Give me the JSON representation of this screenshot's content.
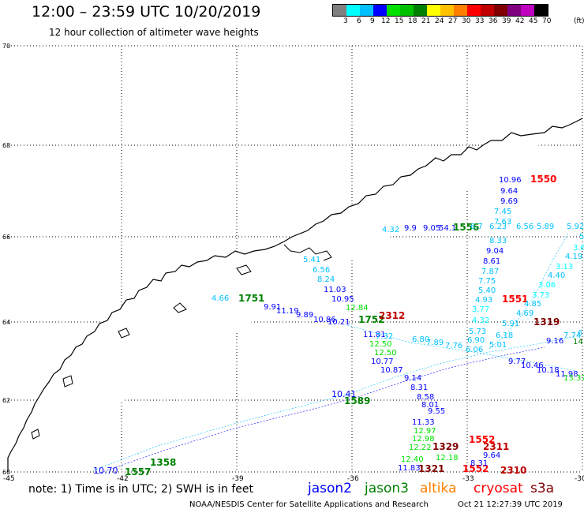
{
  "title": "12:00 – 23:59 UTC 10/20/2019",
  "subtitle": "12 hour collection of altimeter wave heights",
  "legend": {
    "labels": [
      "3",
      "6",
      "9",
      "12",
      "15",
      "18",
      "21",
      "24",
      "27",
      "30",
      "33",
      "36",
      "39",
      "42",
      "45",
      "70"
    ],
    "unit": "(ft)",
    "colors": [
      "#808080",
      "#00ffff",
      "#00c0ff",
      "#0000ff",
      "#00e000",
      "#00c000",
      "#008000",
      "#ffff00",
      "#ffc000",
      "#ff8000",
      "#ff0000",
      "#c00000",
      "#800000",
      "#800080",
      "#c000c0",
      "#000000"
    ]
  },
  "map": {
    "lat_labels": [
      "70",
      "68",
      "66",
      "64",
      "62",
      "60"
    ],
    "lon_labels": [
      "-45",
      "-42",
      "-39",
      "-36",
      "-33",
      "-30"
    ],
    "tracks": [
      {
        "name": "lat66",
        "color": "#008000",
        "values": [
          {
            "t": "4.32",
            "c": "#00c0ff"
          },
          {
            "t": "9.9",
            "c": "#0000ff"
          },
          {
            "t": "9.05",
            "c": "#0000ff"
          },
          {
            "t": "54.1",
            "c": "#0000ff"
          },
          {
            "t": "1556",
            "c": "#008000"
          },
          {
            "t": "6.7",
            "c": "#00c0ff"
          },
          {
            "t": "6.23",
            "c": "#00c0ff"
          },
          {
            "t": "6.56",
            "c": "#00c0ff"
          },
          {
            "t": "5.89",
            "c": "#00c0ff"
          },
          {
            "t": "5.92",
            "c": "#00c0ff"
          }
        ]
      },
      {
        "name": "descending-blue",
        "values": [
          {
            "t": "10.96",
            "c": "#0000ff"
          },
          {
            "t": "1550",
            "c": "#ff0000"
          },
          {
            "t": "9.64",
            "c": "#0000ff"
          },
          {
            "t": "9.69",
            "c": "#0000ff"
          },
          {
            "t": "7.45",
            "c": "#00c0ff"
          },
          {
            "t": "7.63",
            "c": "#00c0ff"
          },
          {
            "t": "8.33",
            "c": "#00c0ff"
          },
          {
            "t": "9.04",
            "c": "#0000ff"
          },
          {
            "t": "8.61",
            "c": "#0000ff"
          },
          {
            "t": "7.87",
            "c": "#00c0ff"
          },
          {
            "t": "7.75",
            "c": "#00c0ff"
          },
          {
            "t": "5.40",
            "c": "#00c0ff"
          },
          {
            "t": "4.93",
            "c": "#00c0ff"
          },
          {
            "t": "3.77",
            "c": "#00ffff"
          },
          {
            "t": "4.32",
            "c": "#00ffff"
          },
          {
            "t": "5.73",
            "c": "#00c0ff"
          },
          {
            "t": "6.90",
            "c": "#00c0ff"
          },
          {
            "t": "6.06",
            "c": "#00c0ff"
          }
        ]
      },
      {
        "name": "right-track",
        "values": [
          {
            "t": "5",
            "c": "#00c0ff"
          },
          {
            "t": "3.6",
            "c": "#00ffff"
          },
          {
            "t": "4.19",
            "c": "#00c0ff"
          },
          {
            "t": "3.13",
            "c": "#00ffff"
          },
          {
            "t": "4.40",
            "c": "#00c0ff"
          },
          {
            "t": "3.06",
            "c": "#00ffff"
          },
          {
            "t": "3.73",
            "c": "#00ffff"
          },
          {
            "t": "1551",
            "c": "#ff0000"
          },
          {
            "t": "4.85",
            "c": "#00c0ff"
          },
          {
            "t": "4.69",
            "c": "#00c0ff"
          },
          {
            "t": "1319",
            "c": "#800000"
          },
          {
            "t": "5.91",
            "c": "#00c0ff"
          },
          {
            "t": "6.18",
            "c": "#00c0ff"
          },
          {
            "t": "5.01",
            "c": "#00c0ff"
          }
        ]
      },
      {
        "name": "mid-track",
        "values": [
          {
            "t": "5.41",
            "c": "#00c0ff"
          },
          {
            "t": "6.56",
            "c": "#00c0ff"
          },
          {
            "t": "8.24",
            "c": "#00c0ff"
          },
          {
            "t": "11.03",
            "c": "#0000ff"
          },
          {
            "t": "10.95",
            "c": "#0000ff"
          },
          {
            "t": "4.66",
            "c": "#00c0ff"
          },
          {
            "t": "1751",
            "c": "#008000"
          },
          {
            "t": "9.91",
            "c": "#0000ff"
          },
          {
            "t": "11.19",
            "c": "#0000ff"
          },
          {
            "t": "9.89",
            "c": "#0000ff"
          },
          {
            "t": "10.86",
            "c": "#0000ff"
          },
          {
            "t": "10.21",
            "c": "#0000ff"
          },
          {
            "t": "12.84",
            "c": "#00e000"
          },
          {
            "t": "1752",
            "c": "#008000"
          },
          {
            "t": "2312",
            "c": "#c00000"
          },
          {
            "t": "11.81",
            "c": "#0000ff"
          },
          {
            "t": "7.32",
            "c": "#00c0ff"
          },
          {
            "t": "6.80",
            "c": "#00c0ff"
          },
          {
            "t": "7.89",
            "c": "#00c0ff"
          },
          {
            "t": "7.76",
            "c": "#00c0ff"
          },
          {
            "t": "12.50",
            "c": "#00e000"
          },
          {
            "t": "12.50",
            "c": "#00e000"
          },
          {
            "t": "10.77",
            "c": "#0000ff"
          },
          {
            "t": "10.87",
            "c": "#0000ff"
          },
          {
            "t": "9.14",
            "c": "#0000ff"
          },
          {
            "t": "8.31",
            "c": "#0000ff"
          },
          {
            "t": "8.58",
            "c": "#0000ff"
          },
          {
            "t": "8.01",
            "c": "#0000ff"
          },
          {
            "t": "9.55",
            "c": "#0000ff"
          },
          {
            "t": "11.33",
            "c": "#0000ff"
          },
          {
            "t": "12.97",
            "c": "#00e000"
          },
          {
            "t": "12.98",
            "c": "#00e000"
          },
          {
            "t": "12.22",
            "c": "#00e000"
          },
          {
            "t": "12.40",
            "c": "#00e000"
          },
          {
            "t": "11.83",
            "c": "#0000ff"
          },
          {
            "t": "1321",
            "c": "#800000"
          },
          {
            "t": "1329",
            "c": "#800000"
          },
          {
            "t": "1552",
            "c": "#ff0000"
          },
          {
            "t": "2311",
            "c": "#c00000"
          },
          {
            "t": "9.64",
            "c": "#0000ff"
          },
          {
            "t": "12.18",
            "c": "#00e000"
          },
          {
            "t": "1552",
            "c": "#ff0000"
          },
          {
            "t": "2310",
            "c": "#c00000"
          },
          {
            "t": "8.31",
            "c": "#0000ff"
          }
        ]
      },
      {
        "name": "east-low",
        "values": [
          {
            "t": "9.77",
            "c": "#0000ff"
          },
          {
            "t": "10.46",
            "c": "#0000ff"
          },
          {
            "t": "10.18",
            "c": "#0000ff"
          },
          {
            "t": "11.98",
            "c": "#0000ff"
          },
          {
            "t": "13.37",
            "c": "#00e000"
          },
          {
            "t": "9.16",
            "c": "#0000ff"
          },
          {
            "t": "7.74",
            "c": "#00c0ff"
          },
          {
            "t": "14",
            "c": "#008000"
          },
          {
            "t": "6",
            "c": "#00c0ff"
          }
        ]
      },
      {
        "name": "sw-track",
        "values": [
          {
            "t": "10.70",
            "c": "#0000ff"
          },
          {
            "t": "1557",
            "c": "#008000"
          },
          {
            "t": "1358",
            "c": "#008000"
          },
          {
            "t": "1589",
            "c": "#008000"
          },
          {
            "t": "10.41",
            "c": "#0000ff"
          }
        ]
      }
    ]
  },
  "note": "note:  1) Time is in UTC;  2) SWH is in feet",
  "satellites": [
    {
      "name": "jason2",
      "color": "#0000ff"
    },
    {
      "name": "jason3",
      "color": "#008000"
    },
    {
      "name": "altika",
      "color": "#ff8000"
    },
    {
      "name": "cryosat",
      "color": "#ff0000"
    },
    {
      "name": "s3a",
      "color": "#800000"
    }
  ],
  "credit": "NOAA/NESDIS Center for Satellite Applications and Research",
  "stamp": "Oct 21 12:27:39 UTC 2019"
}
